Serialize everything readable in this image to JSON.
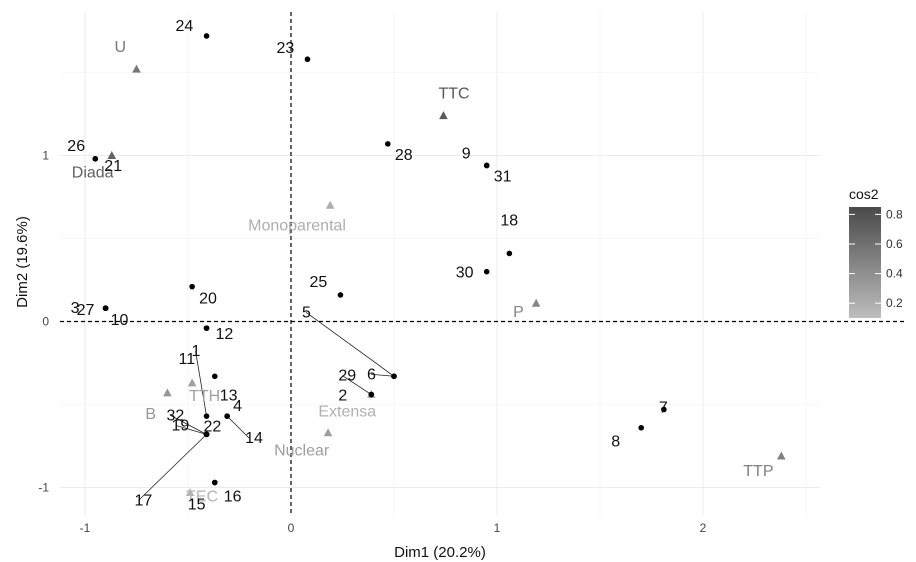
{
  "chart_data": {
    "type": "scatter",
    "title": "",
    "xlabel": "Dim1 (20.2%)",
    "ylabel": "Dim2 (19.6%)",
    "xlim": [
      -1.1,
      2.55
    ],
    "ylim": [
      -1.15,
      1.85
    ],
    "xticks": [
      -1,
      0,
      1,
      2
    ],
    "xtick_labels": [
      "-1",
      "0",
      "1",
      "2"
    ],
    "yticks": [
      -1,
      0,
      1
    ],
    "ytick_labels": [
      "-1",
      "0",
      "1"
    ],
    "grid": true,
    "reference_lines": {
      "x": 0,
      "y": 0,
      "style": "dashed"
    },
    "individuals": [
      {
        "label": "1",
        "x": -0.41,
        "y": -0.57
      },
      {
        "label": "2",
        "x": 0.39,
        "y": -0.44
      },
      {
        "label": "3",
        "x": -0.9,
        "y": 0.08
      },
      {
        "label": "4",
        "x": -0.31,
        "y": -0.57
      },
      {
        "label": "5",
        "x": 0.5,
        "y": -0.33
      },
      {
        "label": "6",
        "x": 0.5,
        "y": -0.33
      },
      {
        "label": "7",
        "x": 1.81,
        "y": -0.53
      },
      {
        "label": "8",
        "x": 1.7,
        "y": -0.64
      },
      {
        "label": "9",
        "x": 0.95,
        "y": 0.94
      },
      {
        "label": "10",
        "x": -0.9,
        "y": 0.08
      },
      {
        "label": "11",
        "x": -0.41,
        "y": -0.04
      },
      {
        "label": "12",
        "x": -0.41,
        "y": -0.04
      },
      {
        "label": "13",
        "x": -0.37,
        "y": -0.33
      },
      {
        "label": "14",
        "x": -0.31,
        "y": -0.57
      },
      {
        "label": "15",
        "x": -0.37,
        "y": -0.97
      },
      {
        "label": "16",
        "x": -0.37,
        "y": -0.97
      },
      {
        "label": "17",
        "x": -0.41,
        "y": -0.68
      },
      {
        "label": "18",
        "x": 1.06,
        "y": 0.41
      },
      {
        "label": "19",
        "x": -0.41,
        "y": -0.68
      },
      {
        "label": "20",
        "x": -0.48,
        "y": 0.21
      },
      {
        "label": "21",
        "x": -0.95,
        "y": 0.98
      },
      {
        "label": "22",
        "x": -0.41,
        "y": -0.68
      },
      {
        "label": "23",
        "x": 0.08,
        "y": 1.58
      },
      {
        "label": "24",
        "x": -0.41,
        "y": 1.72
      },
      {
        "label": "25",
        "x": 0.24,
        "y": 0.16
      },
      {
        "label": "26",
        "x": -0.95,
        "y": 0.98
      },
      {
        "label": "27",
        "x": -0.9,
        "y": 0.08
      },
      {
        "label": "28",
        "x": 0.47,
        "y": 1.07
      },
      {
        "label": "29",
        "x": 0.39,
        "y": -0.44
      },
      {
        "label": "30",
        "x": 0.95,
        "y": 0.3
      },
      {
        "label": "31",
        "x": 0.95,
        "y": 0.94
      },
      {
        "label": "32",
        "x": -0.41,
        "y": -0.68
      }
    ],
    "variables": [
      {
        "label": "U",
        "x": -0.75,
        "y": 1.52,
        "cos2": 0.55
      },
      {
        "label": "TTC",
        "x": 0.74,
        "y": 1.24,
        "cos2": 0.75
      },
      {
        "label": "Diada",
        "x": -0.87,
        "y": 1.0,
        "cos2": 0.7
      },
      {
        "label": "Monoparental",
        "x": 0.19,
        "y": 0.7,
        "cos2": 0.2
      },
      {
        "label": "P",
        "x": 1.19,
        "y": 0.11,
        "cos2": 0.45
      },
      {
        "label": "TTH",
        "x": -0.48,
        "y": -0.37,
        "cos2": 0.28
      },
      {
        "label": "B",
        "x": -0.6,
        "y": -0.43,
        "cos2": 0.35
      },
      {
        "label": "Extensa",
        "x": 0.39,
        "y": -0.44,
        "cos2": 0.18
      },
      {
        "label": "Nuclear",
        "x": 0.18,
        "y": -0.67,
        "cos2": 0.3
      },
      {
        "label": "TEC",
        "x": -0.49,
        "y": -1.03,
        "cos2": 0.15
      },
      {
        "label": "TTP",
        "x": 2.38,
        "y": -0.81,
        "cos2": 0.5
      }
    ],
    "legend": {
      "title": "cos2",
      "position": "right",
      "ticks": [
        0.2,
        0.4,
        0.6,
        0.8
      ],
      "tick_labels": [
        "0.2",
        "0.4",
        "0.6",
        "0.8"
      ],
      "range": [
        0.1,
        0.85
      ],
      "color_low": "#bdbdbd",
      "color_high": "#4a4a4a"
    }
  }
}
